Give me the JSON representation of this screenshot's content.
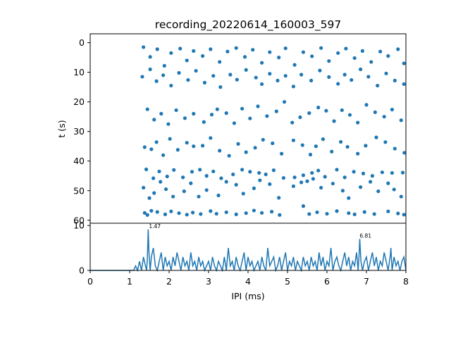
{
  "chart_data": [
    {
      "type": "scatter",
      "title": "recording_20220614_160003_597",
      "xlabel": "",
      "ylabel": "t (s)",
      "xlim": [
        0,
        8
      ],
      "ylim": [
        61,
        -3
      ],
      "y_inverted": true,
      "yticks": [
        0,
        10,
        20,
        30,
        40,
        50,
        60
      ],
      "x_ticklabels_shown": false,
      "marker_color": "#1f77b4",
      "grid": false,
      "points": [
        [
          1.38,
          57.5
        ],
        [
          1.45,
          58.2
        ],
        [
          1.55,
          56.8
        ],
        [
          1.7,
          57.2
        ],
        [
          1.9,
          58.0
        ],
        [
          2.05,
          57.0
        ],
        [
          2.25,
          57.6
        ],
        [
          2.45,
          58.1
        ],
        [
          2.6,
          57.4
        ],
        [
          2.8,
          57.9
        ],
        [
          3.05,
          56.9
        ],
        [
          3.2,
          57.8
        ],
        [
          3.45,
          57.3
        ],
        [
          3.7,
          58.0
        ],
        [
          3.95,
          57.6
        ],
        [
          4.15,
          56.7
        ],
        [
          4.35,
          57.5
        ],
        [
          4.6,
          57.1
        ],
        [
          4.8,
          58.2
        ],
        [
          5.4,
          55.2
        ],
        [
          5.55,
          57.9
        ],
        [
          5.75,
          57.3
        ],
        [
          6.0,
          57.8
        ],
        [
          6.25,
          56.9
        ],
        [
          6.55,
          57.6
        ],
        [
          6.7,
          58.0
        ],
        [
          6.95,
          57.2
        ],
        [
          7.2,
          57.9
        ],
        [
          7.55,
          57.0
        ],
        [
          7.8,
          57.7
        ],
        [
          7.95,
          58.1
        ],
        [
          1.35,
          49.0
        ],
        [
          1.5,
          52.5
        ],
        [
          1.62,
          50.8
        ],
        [
          1.78,
          47.0
        ],
        [
          1.92,
          49.5
        ],
        [
          2.1,
          52.0
        ],
        [
          2.38,
          50.2
        ],
        [
          2.55,
          47.5
        ],
        [
          2.75,
          52.0
        ],
        [
          2.95,
          49.8
        ],
        [
          3.25,
          51.6
        ],
        [
          3.45,
          47.0
        ],
        [
          3.7,
          48.0
        ],
        [
          3.88,
          51.0
        ],
        [
          4.15,
          49.2
        ],
        [
          4.3,
          46.5
        ],
        [
          4.55,
          47.8
        ],
        [
          4.78,
          52.4
        ],
        [
          5.15,
          48.5
        ],
        [
          5.35,
          47.2
        ],
        [
          5.5,
          46.8
        ],
        [
          5.65,
          46.0
        ],
        [
          5.85,
          49.0
        ],
        [
          6.15,
          47.6
        ],
        [
          6.4,
          50.0
        ],
        [
          6.55,
          52.5
        ],
        [
          6.85,
          48.8
        ],
        [
          7.1,
          47.0
        ],
        [
          7.3,
          50.2
        ],
        [
          7.55,
          47.5
        ],
        [
          7.7,
          49.6
        ],
        [
          7.88,
          52.0
        ],
        [
          1.42,
          42.8
        ],
        [
          1.6,
          45.8
        ],
        [
          1.75,
          43.5
        ],
        [
          1.95,
          45.2
        ],
        [
          2.12,
          43.0
        ],
        [
          2.35,
          45.5
        ],
        [
          2.58,
          43.6
        ],
        [
          2.78,
          42.9
        ],
        [
          2.95,
          45.0
        ],
        [
          3.12,
          43.5
        ],
        [
          3.32,
          45.8
        ],
        [
          3.62,
          44.5
        ],
        [
          3.85,
          42.9
        ],
        [
          4.05,
          43.6
        ],
        [
          4.28,
          44.0
        ],
        [
          4.45,
          44.5
        ],
        [
          4.65,
          43.1
        ],
        [
          4.9,
          45.7
        ],
        [
          5.18,
          45.5
        ],
        [
          5.4,
          44.8
        ],
        [
          5.62,
          44.0
        ],
        [
          5.78,
          43.2
        ],
        [
          5.95,
          45.3
        ],
        [
          6.25,
          42.9
        ],
        [
          6.45,
          45.5
        ],
        [
          6.68,
          43.6
        ],
        [
          6.92,
          44.2
        ],
        [
          7.15,
          45.0
        ],
        [
          7.4,
          43.8
        ],
        [
          7.65,
          44.0
        ],
        [
          7.92,
          43.9
        ],
        [
          1.38,
          35.3
        ],
        [
          1.55,
          36.0
        ],
        [
          1.68,
          33.6
        ],
        [
          1.85,
          38.0
        ],
        [
          2.02,
          32.5
        ],
        [
          2.22,
          36.2
        ],
        [
          2.45,
          33.8
        ],
        [
          2.62,
          35.0
        ],
        [
          2.85,
          34.8
        ],
        [
          3.05,
          32.2
        ],
        [
          3.28,
          36.5
        ],
        [
          3.52,
          38.2
        ],
        [
          3.75,
          34.2
        ],
        [
          3.95,
          37.0
        ],
        [
          4.18,
          35.5
        ],
        [
          4.38,
          32.8
        ],
        [
          4.62,
          34.0
        ],
        [
          4.85,
          37.5
        ],
        [
          5.15,
          33.0
        ],
        [
          5.38,
          34.6
        ],
        [
          5.58,
          37.8
        ],
        [
          5.72,
          35.0
        ],
        [
          5.9,
          32.6
        ],
        [
          6.12,
          36.8
        ],
        [
          6.35,
          33.5
        ],
        [
          6.52,
          35.2
        ],
        [
          6.78,
          37.5
        ],
        [
          6.98,
          34.8
        ],
        [
          7.25,
          32.0
        ],
        [
          7.48,
          33.6
        ],
        [
          7.72,
          35.8
        ],
        [
          7.96,
          37.2
        ],
        [
          1.45,
          22.5
        ],
        [
          1.62,
          26.0
        ],
        [
          1.8,
          24.0
        ],
        [
          1.98,
          27.5
        ],
        [
          2.18,
          22.8
        ],
        [
          2.4,
          25.5
        ],
        [
          2.62,
          24.0
        ],
        [
          2.88,
          26.8
        ],
        [
          3.08,
          24.3
        ],
        [
          3.22,
          22.5
        ],
        [
          3.45,
          23.8
        ],
        [
          3.65,
          27.2
        ],
        [
          3.85,
          22.3
        ],
        [
          4.05,
          25.6
        ],
        [
          4.25,
          21.5
        ],
        [
          4.48,
          24.8
        ],
        [
          4.72,
          23.2
        ],
        [
          4.92,
          20.0
        ],
        [
          5.12,
          27.0
        ],
        [
          5.32,
          25.2
        ],
        [
          5.55,
          23.8
        ],
        [
          5.78,
          21.9
        ],
        [
          5.98,
          23.0
        ],
        [
          6.18,
          26.5
        ],
        [
          6.38,
          22.8
        ],
        [
          6.58,
          24.4
        ],
        [
          6.78,
          27.0
        ],
        [
          7.0,
          21.0
        ],
        [
          7.22,
          23.5
        ],
        [
          7.45,
          25.0
        ],
        [
          7.65,
          22.6
        ],
        [
          7.88,
          26.2
        ],
        [
          1.32,
          11.5
        ],
        [
          1.52,
          9.0
        ],
        [
          1.68,
          13.0
        ],
        [
          1.85,
          11.0
        ],
        [
          2.05,
          14.5
        ],
        [
          2.25,
          10.2
        ],
        [
          2.48,
          12.6
        ],
        [
          2.68,
          9.5
        ],
        [
          2.9,
          13.5
        ],
        [
          3.12,
          11.2
        ],
        [
          3.3,
          15.0
        ],
        [
          3.55,
          10.8
        ],
        [
          3.72,
          12.5
        ],
        [
          3.95,
          9.2
        ],
        [
          4.2,
          11.8
        ],
        [
          4.35,
          14.0
        ],
        [
          4.55,
          10.5
        ],
        [
          4.75,
          12.8
        ],
        [
          4.95,
          11.2
        ],
        [
          5.15,
          14.8
        ],
        [
          5.35,
          10.8
        ],
        [
          5.6,
          12.8
        ],
        [
          5.82,
          9.4
        ],
        [
          6.05,
          11.6
        ],
        [
          6.28,
          13.9
        ],
        [
          6.45,
          10.8
        ],
        [
          6.62,
          12.6
        ],
        [
          6.85,
          9.0
        ],
        [
          7.05,
          11.5
        ],
        [
          7.28,
          14.5
        ],
        [
          7.5,
          10.4
        ],
        [
          7.72,
          12.8
        ],
        [
          7.95,
          14.0
        ],
        [
          1.35,
          1.5
        ],
        [
          1.52,
          4.8
        ],
        [
          1.7,
          2.2
        ],
        [
          1.88,
          7.8
        ],
        [
          2.05,
          3.5
        ],
        [
          2.28,
          2.0
        ],
        [
          2.45,
          6.0
        ],
        [
          2.62,
          2.8
        ],
        [
          2.85,
          4.5
        ],
        [
          3.05,
          2.2
        ],
        [
          3.28,
          6.5
        ],
        [
          3.48,
          3.0
        ],
        [
          3.7,
          1.8
        ],
        [
          3.92,
          4.8
        ],
        [
          4.12,
          2.4
        ],
        [
          4.35,
          6.8
        ],
        [
          4.55,
          3.2
        ],
        [
          4.78,
          5.0
        ],
        [
          4.95,
          1.9
        ],
        [
          5.18,
          7.5
        ],
        [
          5.4,
          3.2
        ],
        [
          5.62,
          4.6
        ],
        [
          5.85,
          1.8
        ],
        [
          6.05,
          6.2
        ],
        [
          6.28,
          3.5
        ],
        [
          6.48,
          2.0
        ],
        [
          6.7,
          5.2
        ],
        [
          6.9,
          2.8
        ],
        [
          7.12,
          6.5
        ],
        [
          7.35,
          3.0
        ],
        [
          7.55,
          4.5
        ],
        [
          7.8,
          2.2
        ],
        [
          7.95,
          7.0
        ]
      ]
    },
    {
      "type": "line",
      "title": "",
      "xlabel": "IPI (ms)",
      "ylabel": "",
      "xlim": [
        0,
        8
      ],
      "ylim": [
        0,
        10.5
      ],
      "xticks": [
        0,
        1,
        2,
        3,
        4,
        5,
        6,
        7,
        8
      ],
      "yticks": [
        0,
        10
      ],
      "line_color": "#1f77b4",
      "grid": false,
      "series": [
        {
          "x": [
            0,
            1.0,
            1.05,
            1.1,
            1.15,
            1.2,
            1.25,
            1.3,
            1.35,
            1.4,
            1.43,
            1.45,
            1.47,
            1.49,
            1.52,
            1.55,
            1.6,
            1.65,
            1.7,
            1.75,
            1.8,
            1.85,
            1.9,
            1.95,
            2.0,
            2.05,
            2.1,
            2.15,
            2.2,
            2.25,
            2.3,
            2.35,
            2.4,
            2.45,
            2.5,
            2.55,
            2.6,
            2.65,
            2.7,
            2.75,
            2.8,
            2.85,
            2.9,
            2.95,
            3.0,
            3.05,
            3.1,
            3.15,
            3.2,
            3.25,
            3.3,
            3.35,
            3.4,
            3.45,
            3.5,
            3.55,
            3.6,
            3.65,
            3.7,
            3.75,
            3.8,
            3.85,
            3.9,
            3.95,
            4.0,
            4.05,
            4.1,
            4.15,
            4.2,
            4.25,
            4.3,
            4.35,
            4.4,
            4.45,
            4.5,
            4.55,
            4.6,
            4.65,
            4.7,
            4.75,
            4.8,
            4.85,
            4.9,
            4.95,
            5.0,
            5.05,
            5.1,
            5.15,
            5.2,
            5.25,
            5.3,
            5.35,
            5.4,
            5.45,
            5.5,
            5.55,
            5.6,
            5.65,
            5.7,
            5.75,
            5.8,
            5.85,
            5.9,
            5.95,
            6.0,
            6.05,
            6.1,
            6.15,
            6.2,
            6.25,
            6.3,
            6.35,
            6.4,
            6.45,
            6.5,
            6.55,
            6.6,
            6.65,
            6.7,
            6.75,
            6.79,
            6.81,
            6.83,
            6.86,
            6.9,
            6.95,
            7.0,
            7.05,
            7.1,
            7.15,
            7.2,
            7.25,
            7.3,
            7.35,
            7.4,
            7.45,
            7.5,
            7.55,
            7.6,
            7.62,
            7.65,
            7.7,
            7.75,
            7.8,
            7.85,
            7.9,
            7.95,
            8.0
          ],
          "values": [
            0,
            0,
            0,
            0,
            1,
            0,
            2,
            0,
            3,
            1,
            0,
            3,
            9.1,
            4,
            0,
            3,
            5,
            1,
            0,
            2,
            4,
            0,
            3,
            1,
            2,
            0,
            3,
            1,
            4,
            2,
            0,
            3,
            1,
            2,
            0,
            4,
            1,
            2,
            0,
            3,
            1,
            2,
            0,
            1,
            2,
            0,
            3,
            1,
            0,
            2,
            1,
            0,
            3,
            0,
            5,
            1,
            2,
            0,
            3,
            1,
            0,
            2,
            4,
            0,
            3,
            1,
            2,
            0,
            1,
            2,
            0,
            3,
            1,
            0,
            5,
            1,
            2,
            3,
            0,
            1,
            3,
            0,
            2,
            4,
            0,
            2,
            1,
            3,
            0,
            2,
            1,
            0,
            3,
            1,
            2,
            0,
            3,
            1,
            2,
            0,
            4,
            1,
            3,
            0,
            2,
            1,
            5,
            0,
            2,
            3,
            1,
            0,
            2,
            4,
            1,
            3,
            0,
            2,
            1,
            4,
            0,
            3,
            7,
            2,
            0,
            2,
            3,
            0,
            2,
            4,
            1,
            3,
            0,
            2,
            1,
            4,
            2,
            0,
            3,
            5,
            0,
            3,
            1,
            2,
            0,
            2,
            3,
            0
          ]
        }
      ],
      "annotations": [
        {
          "x": 1.47,
          "y": 9.1,
          "text": "1.47"
        },
        {
          "x": 6.81,
          "y": 7.0,
          "text": "6.81"
        }
      ]
    }
  ]
}
